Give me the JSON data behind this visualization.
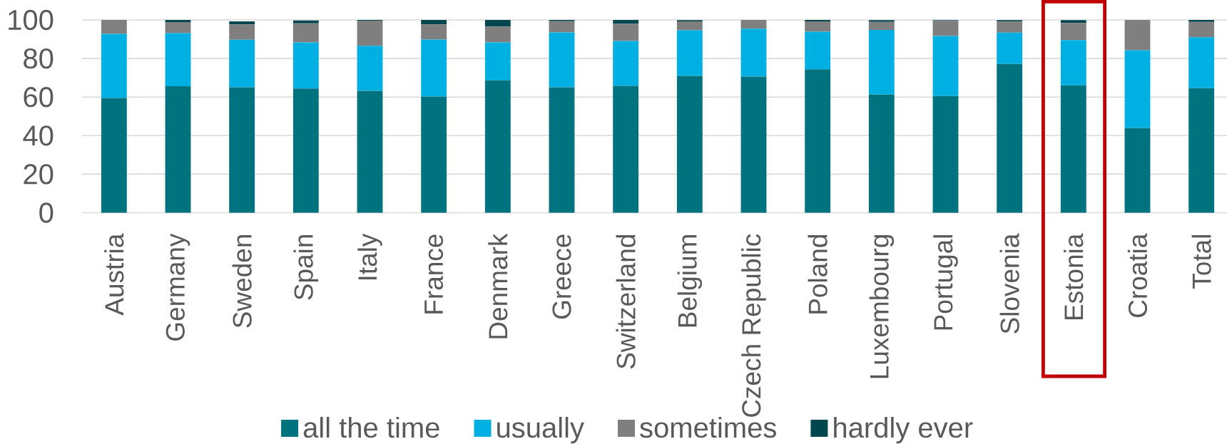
{
  "chart_data": {
    "type": "bar",
    "stacked": true,
    "categories": [
      "Austria",
      "Germany",
      "Sweden",
      "Spain",
      "Italy",
      "France",
      "Denmark",
      "Greece",
      "Switzerland",
      "Belgium",
      "Czech Republic",
      "Poland",
      "Luxembourg",
      "Portugal",
      "Slovenia",
      "Estonia",
      "Croatia",
      "Total"
    ],
    "series": [
      {
        "name": "all the time",
        "color": "#01737e",
        "values": [
          59.5,
          65.6,
          65.1,
          64.4,
          63.2,
          60.3,
          68.7,
          65.1,
          65.8,
          71.0,
          70.6,
          74.4,
          61.3,
          60.5,
          77.2,
          66.1,
          43.9,
          64.6
        ]
      },
      {
        "name": "usually",
        "color": "#00b0e2",
        "values": [
          33.3,
          27.6,
          24.6,
          24.0,
          23.4,
          29.5,
          19.7,
          28.4,
          23.3,
          23.6,
          24.9,
          19.5,
          33.5,
          31.2,
          16.2,
          23.5,
          40.4,
          26.4
        ]
      },
      {
        "name": "sometimes",
        "color": "#7f7f7f",
        "values": [
          7.2,
          5.7,
          8.0,
          9.8,
          13.0,
          7.9,
          8.2,
          5.9,
          8.9,
          4.7,
          4.5,
          5.4,
          4.2,
          7.8,
          5.8,
          8.8,
          15.7,
          8.0
        ]
      },
      {
        "name": "hardly ever",
        "color": "#00464f",
        "values": [
          0,
          1.1,
          1.6,
          1.5,
          0.4,
          2.3,
          3.4,
          0.6,
          2.0,
          0.6,
          0,
          0.7,
          0.9,
          0.4,
          0.7,
          1.5,
          0,
          1.0
        ]
      }
    ],
    "ylim": [
      0,
      100
    ],
    "yticks": [
      0,
      20,
      40,
      60,
      80,
      100
    ],
    "grid": "y",
    "legend": "bottom"
  }
}
